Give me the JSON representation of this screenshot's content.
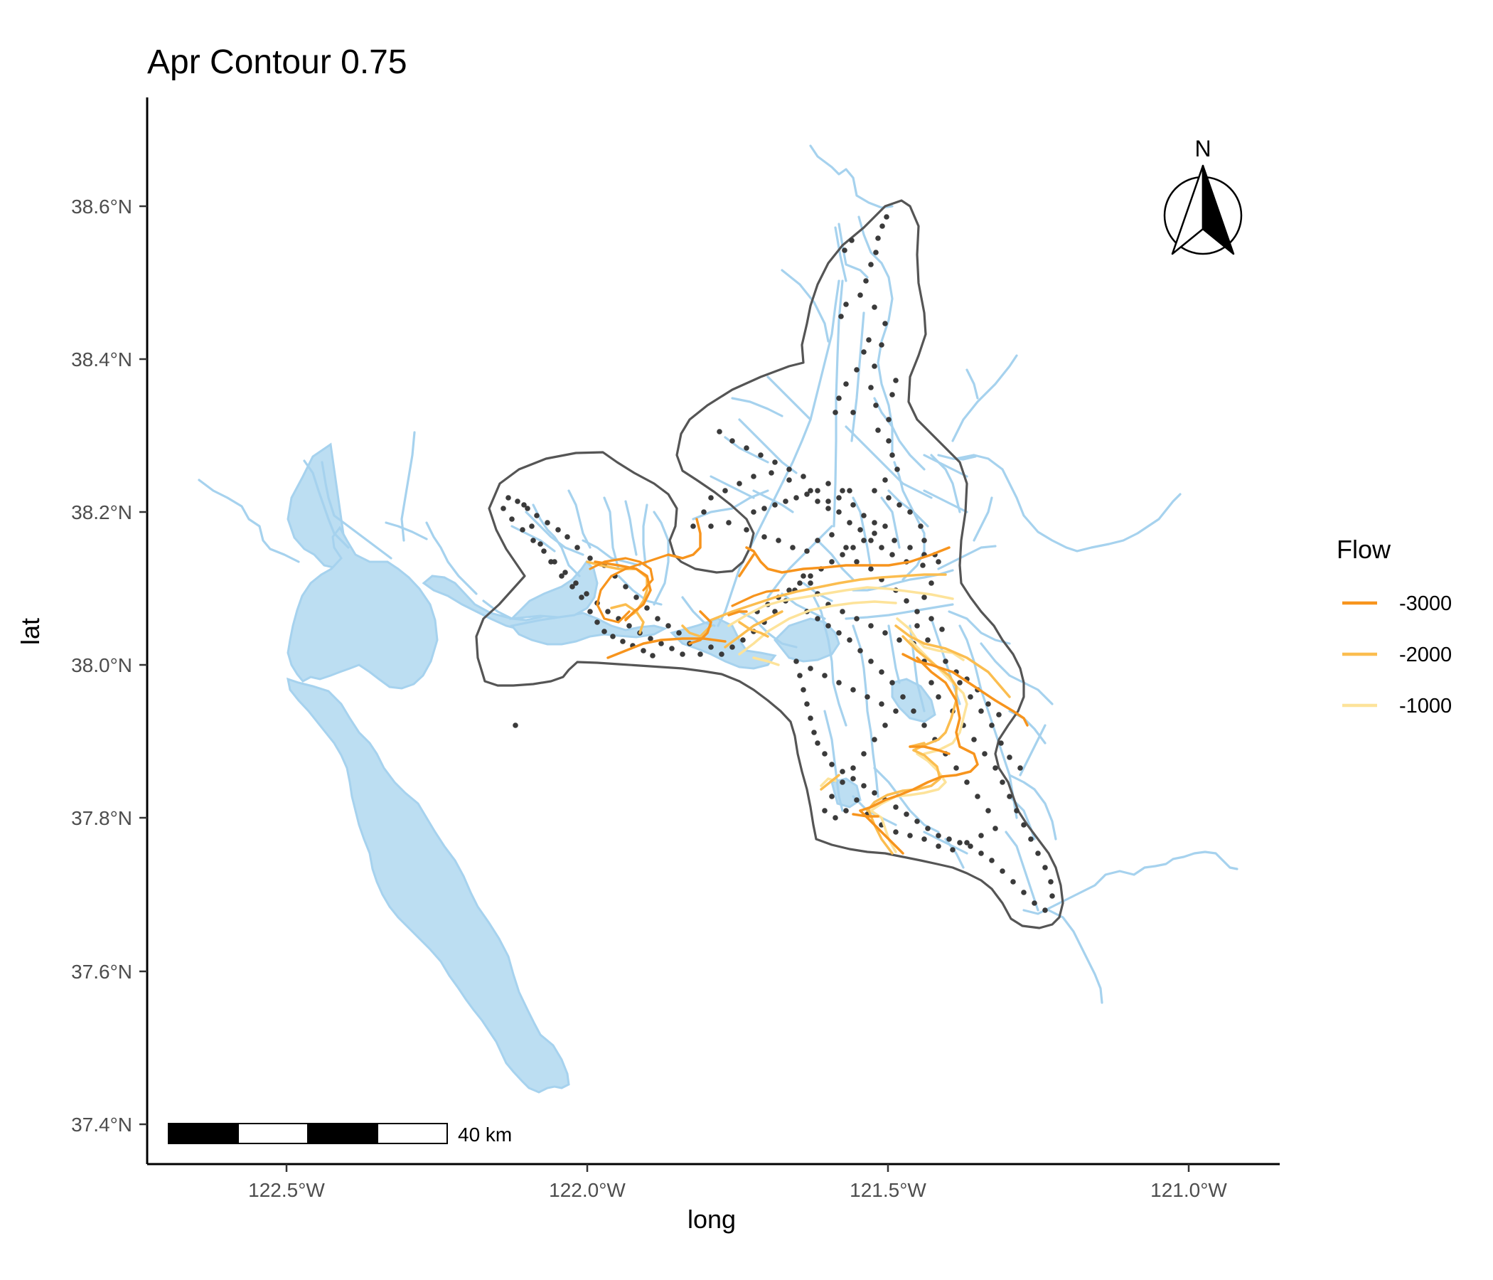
{
  "title": "Apr Contour 0.75",
  "x_axis": {
    "label": "long",
    "ticks": [
      "122.5°W",
      "122.0°W",
      "121.5°W",
      "121.0°W"
    ]
  },
  "y_axis": {
    "label": "lat",
    "ticks": [
      "38.6°N",
      "38.4°N",
      "38.2°N",
      "38.0°N",
      "37.8°N",
      "37.6°N",
      "37.4°N"
    ]
  },
  "legend": {
    "title": "Flow",
    "items": [
      {
        "label": "-3000",
        "color": "#f7941d"
      },
      {
        "label": "-2000",
        "color": "#fbbd4f"
      },
      {
        "label": "-1000",
        "color": "#fde39a"
      }
    ]
  },
  "scale_bar": {
    "label": "40 km"
  },
  "north_arrow": {
    "label": "N",
    "icon": "north-arrow-icon"
  },
  "colors": {
    "water": "#bcdef2",
    "waterway": "#a6d2ee",
    "boundary": "#555555",
    "stations": "#3a3a3a"
  },
  "chart_data": {
    "type": "map",
    "title": "Apr Contour 0.75",
    "xlabel": "long",
    "ylabel": "lat",
    "xlim": [
      -122.73,
      -120.85
    ],
    "ylim": [
      37.36,
      38.74
    ],
    "grid": false,
    "legend_position": "right",
    "layers": [
      "bay water body",
      "delta waterways",
      "study area boundary",
      "monitoring stations",
      "flow contours"
    ],
    "contour_levels": [
      -3000,
      -2000,
      -1000
    ]
  }
}
